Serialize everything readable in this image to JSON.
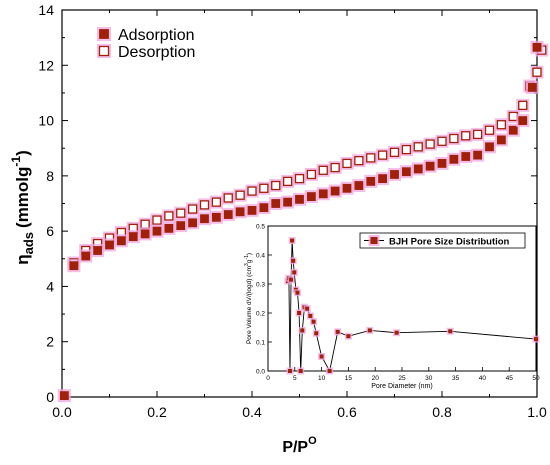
{
  "chart_data": [
    {
      "type": "scatter",
      "title": "",
      "xlabel": "P/P",
      "xlabel_sup": "O",
      "ylabel_main": "η",
      "ylabel_sub": "ads",
      "ylabel_units": "(mmolg",
      "ylabel_units_sup": "-1",
      "ylabel_units_close": ")",
      "xlim": [
        0.0,
        1.0
      ],
      "ylim": [
        0,
        14
      ],
      "x_ticks": [
        0.0,
        0.2,
        0.4,
        0.6,
        0.8,
        1.0
      ],
      "x_tick_labels": [
        "0.0",
        "0.2",
        "0.4",
        "0.6",
        "0.8",
        "1.0"
      ],
      "y_ticks": [
        0,
        2,
        4,
        6,
        8,
        10,
        12,
        14
      ],
      "y_tick_labels": [
        "0",
        "2",
        "4",
        "6",
        "8",
        "10",
        "12",
        "14"
      ],
      "grid": false,
      "legend_position": "top-left",
      "series": [
        {
          "name": "Adsorption",
          "marker": "filled-square",
          "color": "#a0200a",
          "halo": "#f0a8e0",
          "points": [
            [
              0.005,
              0.05
            ],
            [
              0.025,
              4.75
            ],
            [
              0.05,
              5.1
            ],
            [
              0.075,
              5.3
            ],
            [
              0.1,
              5.5
            ],
            [
              0.125,
              5.65
            ],
            [
              0.15,
              5.8
            ],
            [
              0.175,
              5.9
            ],
            [
              0.2,
              6.0
            ],
            [
              0.225,
              6.1
            ],
            [
              0.25,
              6.2
            ],
            [
              0.275,
              6.3
            ],
            [
              0.3,
              6.45
            ],
            [
              0.325,
              6.5
            ],
            [
              0.35,
              6.6
            ],
            [
              0.375,
              6.7
            ],
            [
              0.4,
              6.75
            ],
            [
              0.425,
              6.85
            ],
            [
              0.45,
              7.0
            ],
            [
              0.475,
              7.05
            ],
            [
              0.5,
              7.15
            ],
            [
              0.525,
              7.25
            ],
            [
              0.55,
              7.35
            ],
            [
              0.575,
              7.45
            ],
            [
              0.6,
              7.55
            ],
            [
              0.625,
              7.65
            ],
            [
              0.65,
              7.8
            ],
            [
              0.675,
              7.9
            ],
            [
              0.7,
              8.05
            ],
            [
              0.725,
              8.15
            ],
            [
              0.75,
              8.25
            ],
            [
              0.775,
              8.35
            ],
            [
              0.8,
              8.45
            ],
            [
              0.825,
              8.6
            ],
            [
              0.85,
              8.7
            ],
            [
              0.875,
              8.75
            ],
            [
              0.9,
              9.05
            ],
            [
              0.925,
              9.3
            ],
            [
              0.95,
              9.65
            ],
            [
              0.97,
              10.0
            ],
            [
              0.99,
              11.2
            ],
            [
              1.0,
              12.65
            ]
          ]
        },
        {
          "name": "Desorption",
          "marker": "open-square",
          "color": "#a0200a",
          "halo": "#f0a8e0",
          "points": [
            [
              0.025,
              4.85
            ],
            [
              0.05,
              5.3
            ],
            [
              0.075,
              5.55
            ],
            [
              0.1,
              5.75
            ],
            [
              0.125,
              5.95
            ],
            [
              0.15,
              6.1
            ],
            [
              0.175,
              6.25
            ],
            [
              0.2,
              6.4
            ],
            [
              0.225,
              6.55
            ],
            [
              0.25,
              6.65
            ],
            [
              0.275,
              6.8
            ],
            [
              0.3,
              6.95
            ],
            [
              0.325,
              7.05
            ],
            [
              0.35,
              7.2
            ],
            [
              0.375,
              7.3
            ],
            [
              0.4,
              7.45
            ],
            [
              0.425,
              7.55
            ],
            [
              0.45,
              7.65
            ],
            [
              0.475,
              7.8
            ],
            [
              0.5,
              7.9
            ],
            [
              0.525,
              8.05
            ],
            [
              0.55,
              8.2
            ],
            [
              0.575,
              8.3
            ],
            [
              0.6,
              8.45
            ],
            [
              0.625,
              8.55
            ],
            [
              0.65,
              8.65
            ],
            [
              0.675,
              8.75
            ],
            [
              0.7,
              8.85
            ],
            [
              0.725,
              8.95
            ],
            [
              0.75,
              9.05
            ],
            [
              0.775,
              9.15
            ],
            [
              0.8,
              9.25
            ],
            [
              0.825,
              9.35
            ],
            [
              0.85,
              9.45
            ],
            [
              0.875,
              9.5
            ],
            [
              0.9,
              9.65
            ],
            [
              0.925,
              9.85
            ],
            [
              0.95,
              10.15
            ],
            [
              0.97,
              10.55
            ],
            [
              0.985,
              11.25
            ],
            [
              1.0,
              11.75
            ],
            [
              1.01,
              12.55
            ]
          ]
        }
      ]
    },
    {
      "type": "line",
      "title": "",
      "xlabel": "Pore Diameter (nm)",
      "ylabel": "Pore Volume dV/(logd) (cm",
      "ylabel_sup": "3",
      "ylabel_mid": "g",
      "ylabel_sup2": "-1",
      "ylabel_close": ")",
      "xlim": [
        0,
        50
      ],
      "ylim": [
        0.0,
        0.5
      ],
      "x_ticks": [
        0,
        5,
        10,
        15,
        20,
        25,
        30,
        35,
        40,
        45,
        50
      ],
      "x_tick_labels": [
        "0",
        "5",
        "10",
        "15",
        "20",
        "25",
        "30",
        "35",
        "40",
        "45",
        "50"
      ],
      "y_ticks": [
        0.0,
        0.1,
        0.2,
        0.3,
        0.4,
        0.5
      ],
      "y_tick_labels": [
        "0.0",
        "0.1",
        "0.2",
        "0.3",
        "0.4",
        "0.5"
      ],
      "grid": false,
      "legend_position": "top-right",
      "series": [
        {
          "name": "BJH Pore Size Distribution",
          "marker": "filled-square",
          "color": "#a0200a",
          "halo": "#f0a8e0",
          "line_color": "#000000",
          "points": [
            [
              3.7,
              0.31
            ],
            [
              3.9,
              0.32
            ],
            [
              4.1,
              0.0
            ],
            [
              4.3,
              0.315
            ],
            [
              4.5,
              0.45
            ],
            [
              4.7,
              0.38
            ],
            [
              4.9,
              0.34
            ],
            [
              5.2,
              0.28
            ],
            [
              5.5,
              0.27
            ],
            [
              5.8,
              0.2
            ],
            [
              6.1,
              0.0
            ],
            [
              6.4,
              0.14
            ],
            [
              6.8,
              0.22
            ],
            [
              7.3,
              0.215
            ],
            [
              7.9,
              0.19
            ],
            [
              8.5,
              0.17
            ],
            [
              9.0,
              0.13
            ],
            [
              10.0,
              0.05
            ],
            [
              11.5,
              0.0
            ],
            [
              13.0,
              0.135
            ],
            [
              15.0,
              0.12
            ],
            [
              19.0,
              0.14
            ],
            [
              24.0,
              0.132
            ],
            [
              34.0,
              0.137
            ],
            [
              50.0,
              0.11
            ]
          ]
        }
      ]
    }
  ]
}
